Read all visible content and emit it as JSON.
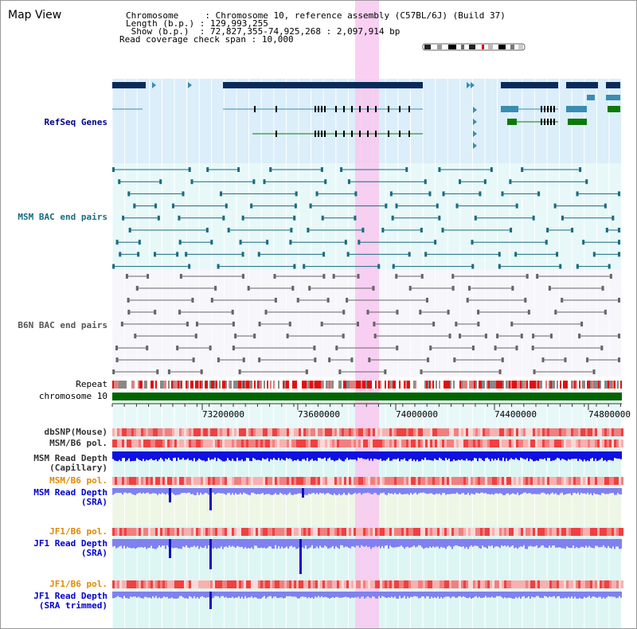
{
  "header": {
    "title": "Map View",
    "rows": [
      {
        "key": "Chromosome    ",
        "value": "Chromosome 10, reference assembly (C57BL/6J) (Build 37)"
      },
      {
        "key": "Length (b.p.)",
        "value": "129,993,255"
      },
      {
        "key": " Show (b.p.) ",
        "value": "72,827,355-74,925,268 : 2,097,914 bp"
      }
    ],
    "coverage_key": "Read coverage check span",
    "coverage_value": "10,000"
  },
  "tracks": {
    "refseq": {
      "label": "RefSeq Genes",
      "color": "#00008b"
    },
    "msm_bac": {
      "label": "MSM BAC end pairs",
      "color": "#1a6b80"
    },
    "b6n_bac": {
      "label": "B6N BAC end pairs",
      "color": "#555555"
    },
    "repeat": {
      "label": "Repeat"
    },
    "chromosome": {
      "label": "chromosome 10",
      "color": "#006400"
    },
    "dbsnp": {
      "label": "dbSNP(Mouse)"
    },
    "msm_b6_pol": {
      "label": "MSM/B6 pol."
    },
    "msm_depth_cap": {
      "label": "MSM Read Depth\n(Capillary)"
    },
    "msm_b6_pol2": {
      "label": "MSM/B6 pol.",
      "color": "#e08a00"
    },
    "msm_depth_sra": {
      "label": "MSM Read Depth\n(SRA)",
      "color": "#0000cc"
    },
    "jf1_b6_pol": {
      "label": "JF1/B6 pol.",
      "color": "#e08a00"
    },
    "jf1_depth_sra": {
      "label": "JF1 Read Depth\n(SRA)",
      "color": "#0000cc"
    },
    "jf1_b6_pol2": {
      "label": "JF1/B6 pol.",
      "color": "#e08a00"
    },
    "jf1_depth_trim": {
      "label": "JF1 Read Depth\n(SRA trimmed)",
      "color": "#0000cc"
    }
  },
  "axis": {
    "ticks": [
      "73200000",
      "73600000",
      "74000000",
      "74400000",
      "74800000"
    ]
  },
  "colors": {
    "highlight": "#f8c8f0",
    "gene_dark": "#0a2a5a",
    "gene_mid": "#3a8cb0",
    "gene_green": "#0a7a0a",
    "depth_blue": "#1010e0",
    "depth_light": "#8080f0"
  }
}
